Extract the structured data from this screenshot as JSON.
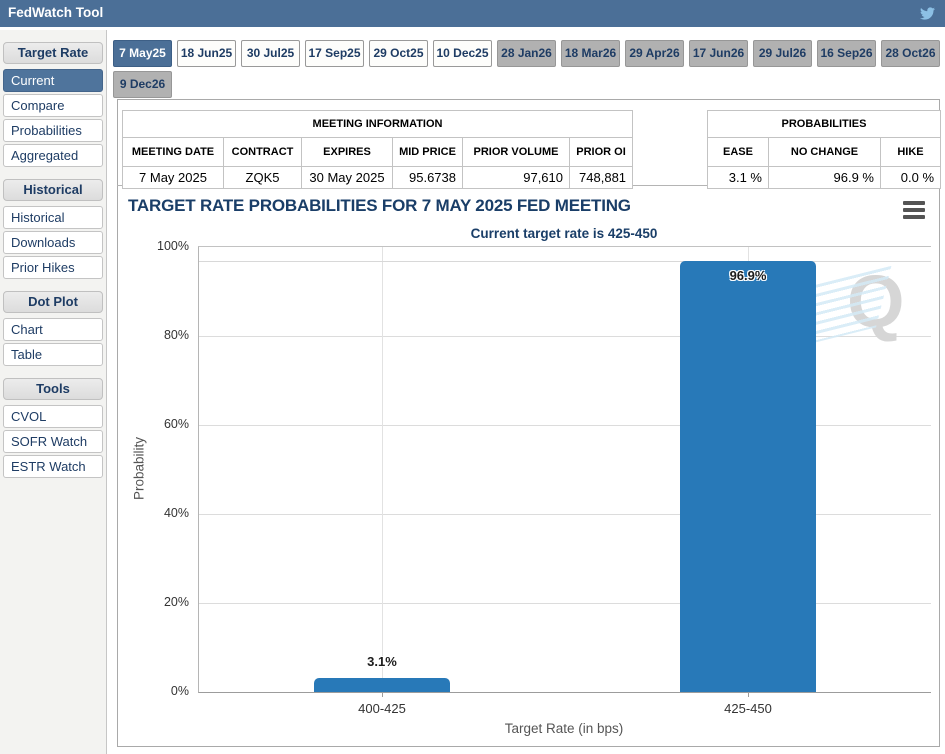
{
  "header": {
    "title": "FedWatch Tool"
  },
  "icons": {
    "twitter_icon": "twitter-bird",
    "chart_menu_icon": "hamburger",
    "watermark_letter": "Q"
  },
  "colors": {
    "accent_blue": "#4b6f97",
    "bar_blue": "#2879b8",
    "navy_text": "#1e3c64",
    "title_navy": "#1a3e68",
    "inactive_tab_gray": "#b1b1b1"
  },
  "sidebar": {
    "sections": [
      {
        "title": "Target Rate",
        "items": [
          {
            "label": "Current",
            "active": true
          },
          {
            "label": "Compare",
            "active": false
          },
          {
            "label": "Probabilities",
            "active": false
          },
          {
            "label": "Aggregated",
            "active": false
          }
        ]
      },
      {
        "title": "Historical",
        "items": [
          {
            "label": "Historical",
            "active": false
          },
          {
            "label": "Downloads",
            "active": false
          },
          {
            "label": "Prior Hikes",
            "active": false
          }
        ]
      },
      {
        "title": "Dot Plot",
        "items": [
          {
            "label": "Chart",
            "active": false
          },
          {
            "label": "Table",
            "active": false
          }
        ]
      },
      {
        "title": "Tools",
        "items": [
          {
            "label": "CVOL",
            "active": false
          },
          {
            "label": "SOFR Watch",
            "active": false
          },
          {
            "label": "ESTR Watch",
            "active": false
          }
        ]
      }
    ]
  },
  "tabs": [
    {
      "label": "7 May25",
      "state": "active"
    },
    {
      "label": "18 Jun25",
      "state": "near"
    },
    {
      "label": "30 Jul25",
      "state": "near"
    },
    {
      "label": "17 Sep25",
      "state": "near"
    },
    {
      "label": "29 Oct25",
      "state": "near"
    },
    {
      "label": "10 Dec25",
      "state": "near"
    },
    {
      "label": "28 Jan26",
      "state": "far"
    },
    {
      "label": "18 Mar26",
      "state": "far"
    },
    {
      "label": "29 Apr26",
      "state": "far"
    },
    {
      "label": "17 Jun26",
      "state": "far"
    },
    {
      "label": "29 Jul26",
      "state": "far"
    },
    {
      "label": "16 Sep26",
      "state": "far"
    },
    {
      "label": "28 Oct26",
      "state": "far"
    },
    {
      "label": "9 Dec26",
      "state": "far"
    }
  ],
  "meeting_info": {
    "title": "MEETING INFORMATION",
    "columns": [
      "MEETING DATE",
      "CONTRACT",
      "EXPIRES",
      "MID PRICE",
      "PRIOR VOLUME",
      "PRIOR OI"
    ],
    "row": [
      "7 May 2025",
      "ZQK5",
      "30 May 2025",
      "95.6738",
      "97,610",
      "748,881"
    ]
  },
  "probabilities": {
    "title": "PROBABILITIES",
    "columns": [
      "EASE",
      "NO CHANGE",
      "HIKE"
    ],
    "row": [
      "3.1 %",
      "96.9 %",
      "0.0 %"
    ]
  },
  "chart_data": {
    "type": "bar",
    "title": "TARGET RATE PROBABILITIES FOR 7 MAY 2025 FED MEETING",
    "subtitle": "Current target rate is 425-450",
    "categories": [
      "400-425",
      "425-450"
    ],
    "values": [
      3.1,
      96.9
    ],
    "value_labels": [
      "3.1%",
      "96.9%"
    ],
    "xlabel": "Target Rate (in bps)",
    "ylabel": "Probability",
    "ylim": [
      0,
      100
    ],
    "yticks": [
      0,
      20,
      40,
      60,
      80,
      100
    ],
    "ytick_suffix": "%",
    "grid": true,
    "legend": false,
    "bar_color": "#2879b8"
  }
}
